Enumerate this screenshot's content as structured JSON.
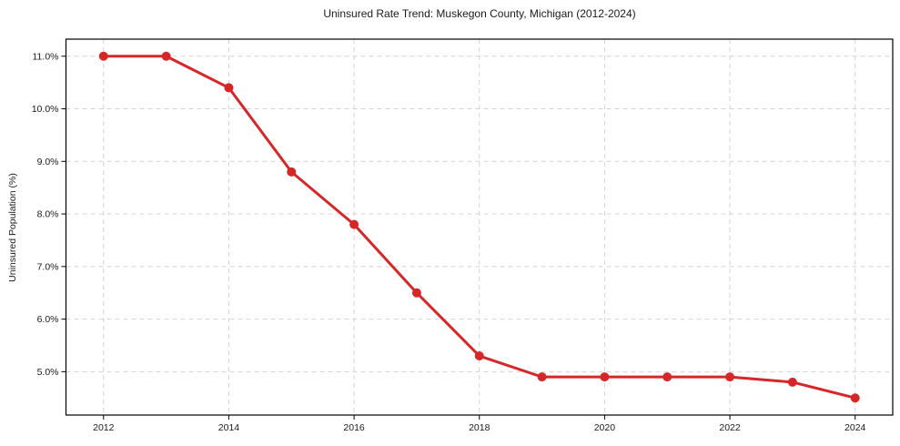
{
  "chart_data": {
    "type": "line",
    "title": "Uninsured Rate Trend: Muskegon County, Michigan (2012-2024)",
    "xlabel": "",
    "ylabel": "Uninsured Population (%)",
    "x": [
      2012,
      2013,
      2014,
      2015,
      2016,
      2017,
      2018,
      2019,
      2020,
      2021,
      2022,
      2023,
      2024
    ],
    "series": [
      {
        "name": "uninsured-rate",
        "values": [
          11.0,
          11.0,
          10.4,
          8.8,
          7.8,
          6.5,
          5.3,
          4.9,
          4.9,
          4.9,
          4.9,
          4.8,
          4.5
        ],
        "color": "#d62728",
        "marker": "circle"
      }
    ],
    "xticks": {
      "values": [
        2012,
        2014,
        2016,
        2018,
        2020,
        2022,
        2024
      ],
      "labels": [
        "2012",
        "2014",
        "2016",
        "2018",
        "2020",
        "2022",
        "2024"
      ]
    },
    "yticks": {
      "values": [
        5,
        6,
        7,
        8,
        9,
        10,
        11
      ],
      "labels": [
        "5.0%",
        "6.0%",
        "7.0%",
        "8.0%",
        "9.0%",
        "10.0%",
        "11.0%"
      ]
    },
    "xlim": [
      2011.4,
      2024.6
    ],
    "ylim": [
      4.175,
      11.325
    ],
    "grid": true,
    "grid_color": "#d3d3d3",
    "axis_color": "#000000",
    "text_color": "#1a1a1a",
    "background": "#ffffff",
    "legend": "none"
  }
}
